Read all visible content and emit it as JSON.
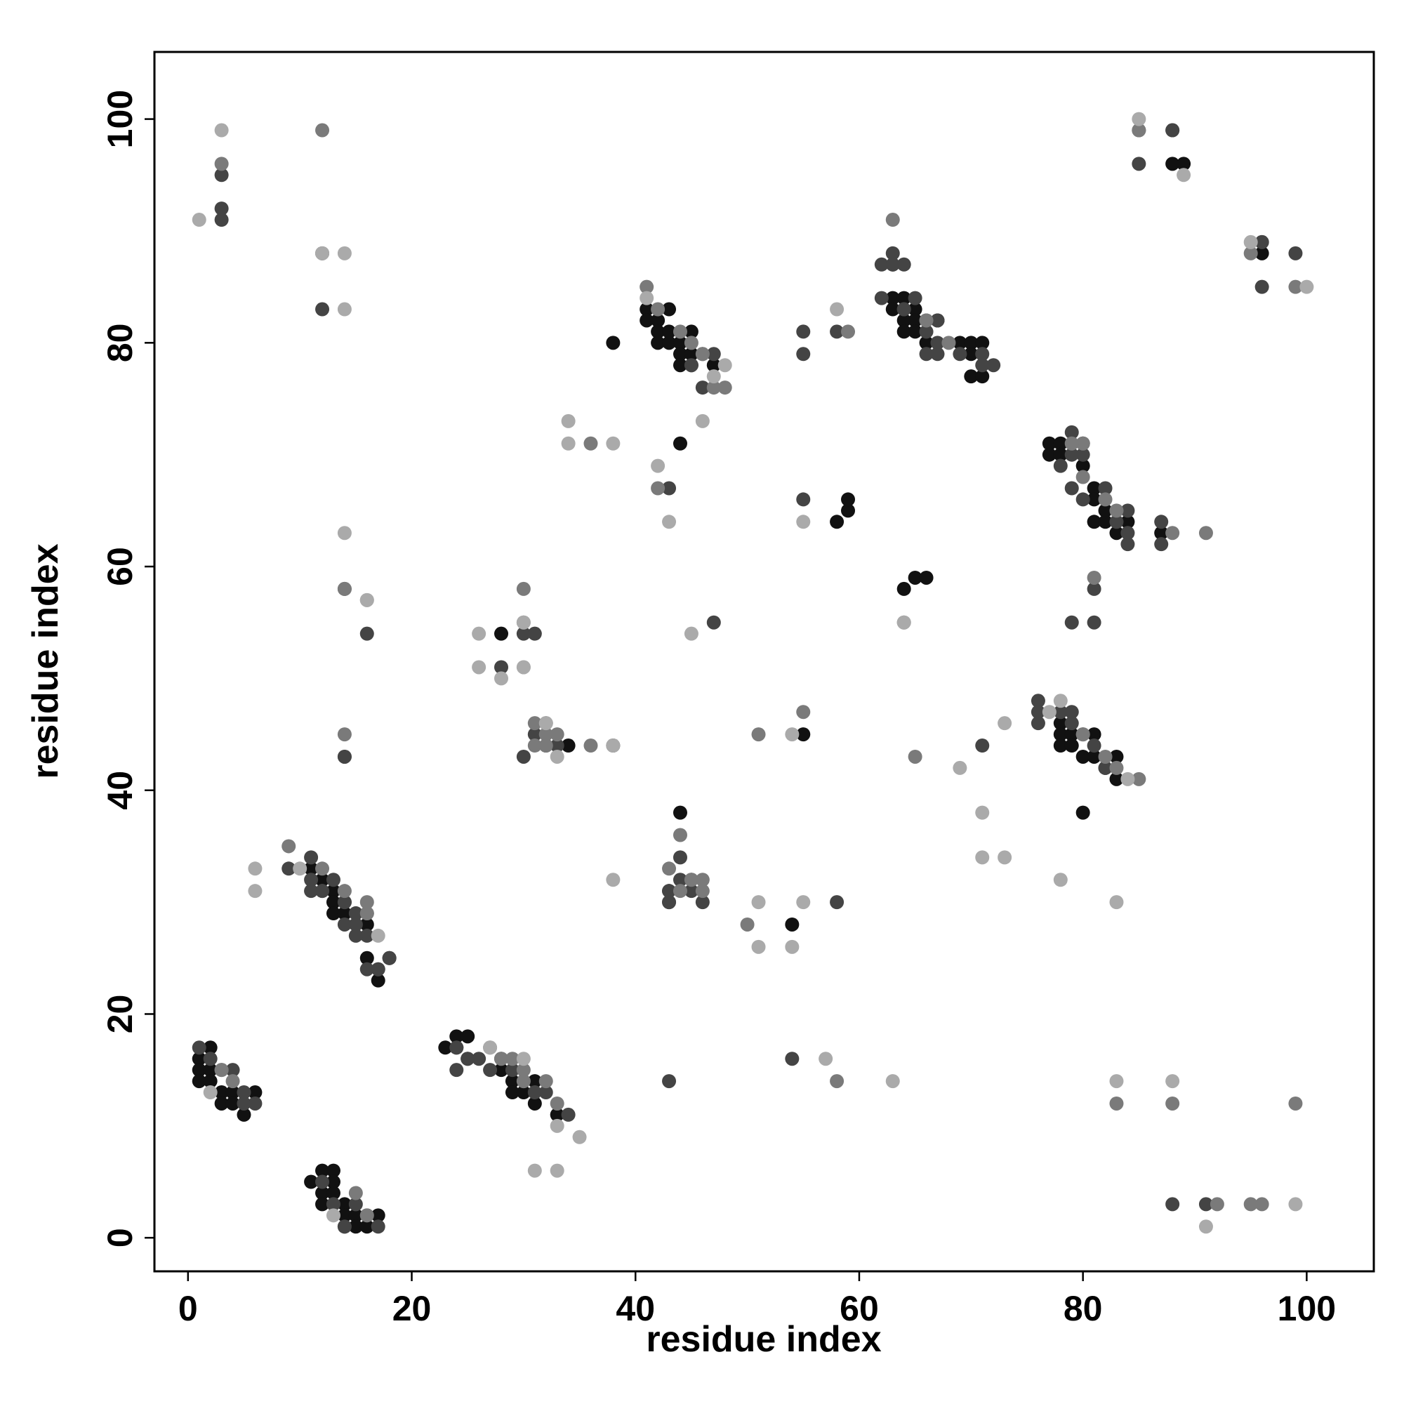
{
  "chart_data": {
    "type": "scatter",
    "xlabel": "residue index",
    "ylabel": "residue index",
    "xlim": [
      -3,
      106
    ],
    "ylim": [
      -3,
      106
    ],
    "xticks": [
      0,
      20,
      40,
      60,
      80,
      100
    ],
    "yticks": [
      0,
      20,
      40,
      60,
      80,
      100
    ],
    "series": [
      {
        "color": "#111111",
        "x": [
          2,
          1,
          1,
          2,
          1,
          2,
          3,
          4,
          6,
          3,
          4,
          5,
          12,
          13,
          11,
          13,
          12,
          13,
          12,
          14,
          14,
          15,
          16,
          17,
          14,
          15,
          16,
          11,
          13,
          12,
          13,
          14,
          13,
          14,
          15,
          16,
          18,
          16,
          17,
          23,
          24,
          25,
          24,
          28,
          28,
          29,
          29,
          30,
          31,
          31,
          33,
          28,
          34,
          38,
          32,
          38,
          41,
          43,
          41,
          42,
          42,
          43,
          45,
          42,
          43,
          44,
          44,
          45,
          44,
          45,
          47,
          44,
          44,
          45,
          54,
          55,
          58,
          59,
          59,
          63,
          63,
          64,
          63,
          65,
          64,
          65,
          67,
          64,
          65,
          66,
          69,
          70,
          71,
          70,
          70,
          71,
          64,
          65,
          66,
          78,
          78,
          79,
          81,
          78,
          79,
          80,
          81,
          83,
          82,
          83,
          80,
          77,
          78,
          80,
          77,
          78,
          80,
          81,
          81,
          82,
          81,
          82,
          84,
          83,
          87,
          88,
          89,
          96,
          96
        ],
        "y": [
          17,
          16,
          15,
          15,
          14,
          14,
          13,
          13,
          13,
          12,
          12,
          11,
          6,
          6,
          5,
          5,
          4,
          4,
          3,
          3,
          2,
          2,
          2,
          2,
          1,
          1,
          1,
          33,
          31,
          32,
          30,
          30,
          29,
          29,
          29,
          28,
          25,
          25,
          23,
          17,
          18,
          18,
          17,
          16,
          15,
          14,
          13,
          13,
          14,
          12,
          11,
          54,
          44,
          44,
          44,
          80,
          83,
          83,
          82,
          82,
          81,
          81,
          81,
          80,
          80,
          80,
          79,
          79,
          78,
          78,
          78,
          71,
          38,
          32,
          28,
          45,
          64,
          65,
          66,
          87,
          84,
          84,
          83,
          83,
          82,
          82,
          82,
          81,
          81,
          80,
          80,
          80,
          80,
          79,
          77,
          77,
          58,
          59,
          59,
          46,
          45,
          45,
          45,
          44,
          44,
          43,
          43,
          43,
          42,
          41,
          38,
          71,
          71,
          71,
          70,
          70,
          69,
          67,
          66,
          65,
          64,
          64,
          64,
          63,
          63,
          96,
          96,
          89,
          88
        ]
      },
      {
        "color": "#444444",
        "x": [
          1,
          2,
          4,
          5,
          5,
          6,
          12,
          13,
          15,
          14,
          17,
          9,
          11,
          11,
          12,
          13,
          11,
          12,
          14,
          15,
          14,
          15,
          16,
          16,
          17,
          15,
          16,
          17,
          18,
          24,
          24,
          25,
          26,
          25,
          27,
          29,
          30,
          31,
          32,
          34,
          3,
          12,
          3,
          3,
          14,
          14,
          16,
          12,
          14,
          28,
          31,
          30,
          33,
          30,
          31,
          47,
          46,
          43,
          45,
          47,
          46,
          55,
          55,
          58,
          55,
          44,
          44,
          43,
          43,
          45,
          46,
          43,
          43,
          43,
          58,
          54,
          62,
          63,
          64,
          63,
          62,
          64,
          65,
          64,
          66,
          67,
          66,
          67,
          69,
          71,
          71,
          72,
          66,
          67,
          71,
          76,
          76,
          76,
          78,
          79,
          79,
          80,
          81,
          82,
          79,
          79,
          80,
          78,
          79,
          80,
          82,
          84,
          83,
          84,
          84,
          87,
          87,
          81,
          79,
          81,
          88,
          85,
          85,
          88,
          96,
          99,
          96,
          91,
          88
        ],
        "y": [
          17,
          16,
          15,
          13,
          12,
          12,
          5,
          3,
          3,
          1,
          1,
          33,
          34,
          32,
          31,
          32,
          31,
          31,
          30,
          29,
          28,
          28,
          27,
          29,
          24,
          27,
          24,
          24,
          25,
          17,
          15,
          16,
          16,
          16,
          15,
          15,
          14,
          13,
          13,
          11,
          91,
          88,
          92,
          95,
          43,
          43,
          54,
          83,
          58,
          51,
          45,
          43,
          44,
          54,
          54,
          55,
          76,
          67,
          78,
          79,
          79,
          81,
          79,
          30,
          66,
          34,
          32,
          31,
          30,
          31,
          30,
          31,
          30,
          14,
          81,
          16,
          87,
          88,
          87,
          87,
          84,
          83,
          84,
          83,
          81,
          80,
          79,
          79,
          79,
          79,
          78,
          78,
          82,
          82,
          44,
          48,
          47,
          46,
          47,
          47,
          46,
          45,
          44,
          42,
          72,
          70,
          70,
          69,
          67,
          66,
          67,
          65,
          64,
          63,
          62,
          64,
          62,
          58,
          55,
          55,
          3,
          96,
          99,
          99,
          85,
          88,
          89,
          3,
          99
        ]
      },
      {
        "color": "#7a7a7a",
        "x": [
          3,
          4,
          15,
          16,
          12,
          14,
          16,
          9,
          30,
          14,
          16,
          29,
          30,
          32,
          33,
          27,
          31,
          32,
          33,
          3,
          3,
          12,
          14,
          31,
          32,
          30,
          32,
          36,
          30,
          28,
          36,
          41,
          42,
          44,
          45,
          46,
          47,
          48,
          42,
          44,
          45,
          46,
          44,
          46,
          43,
          58,
          55,
          59,
          63,
          66,
          68,
          80,
          82,
          83,
          85,
          80,
          82,
          79,
          80,
          83,
          88,
          91,
          81,
          85,
          95,
          99,
          83,
          88,
          92,
          95,
          96,
          99,
          51,
          50,
          64,
          65
        ],
        "y": [
          15,
          14,
          4,
          2,
          33,
          31,
          30,
          35,
          14,
          58,
          29,
          16,
          15,
          14,
          12,
          17,
          46,
          46,
          45,
          15,
          96,
          99,
          45,
          44,
          44,
          55,
          45,
          44,
          58,
          16,
          71,
          85,
          83,
          81,
          80,
          79,
          76,
          76,
          67,
          36,
          32,
          32,
          31,
          31,
          33,
          14,
          47,
          81,
          91,
          82,
          80,
          45,
          43,
          42,
          41,
          71,
          66,
          71,
          68,
          65,
          63,
          63,
          59,
          99,
          88,
          85,
          12,
          12,
          3,
          3,
          3,
          12,
          45,
          28,
          55,
          43
        ]
      },
      {
        "color": "#aaaaaa",
        "x": [
          2,
          13,
          6,
          6,
          10,
          17,
          27,
          30,
          33,
          35,
          31,
          33,
          1,
          3,
          12,
          14,
          14,
          16,
          14,
          26,
          30,
          26,
          28,
          30,
          33,
          32,
          30,
          34,
          34,
          38,
          38,
          41,
          48,
          47,
          42,
          43,
          46,
          45,
          51,
          51,
          54,
          55,
          54,
          57,
          63,
          55,
          58,
          64,
          69,
          73,
          71,
          71,
          73,
          77,
          78,
          84,
          78,
          83,
          83,
          89,
          95,
          100,
          85,
          88,
          91,
          99,
          38,
          16
        ],
        "y": [
          13,
          2,
          33,
          31,
          33,
          27,
          17,
          16,
          10,
          9,
          6,
          6,
          91,
          99,
          88,
          88,
          83,
          57,
          63,
          54,
          55,
          51,
          50,
          51,
          43,
          46,
          51,
          73,
          71,
          71,
          32,
          84,
          78,
          77,
          69,
          64,
          73,
          54,
          30,
          26,
          26,
          30,
          45,
          16,
          14,
          64,
          83,
          55,
          42,
          46,
          38,
          34,
          34,
          47,
          48,
          41,
          32,
          30,
          14,
          95,
          89,
          85,
          100,
          14,
          1,
          3,
          44,
          57
        ]
      }
    ]
  }
}
